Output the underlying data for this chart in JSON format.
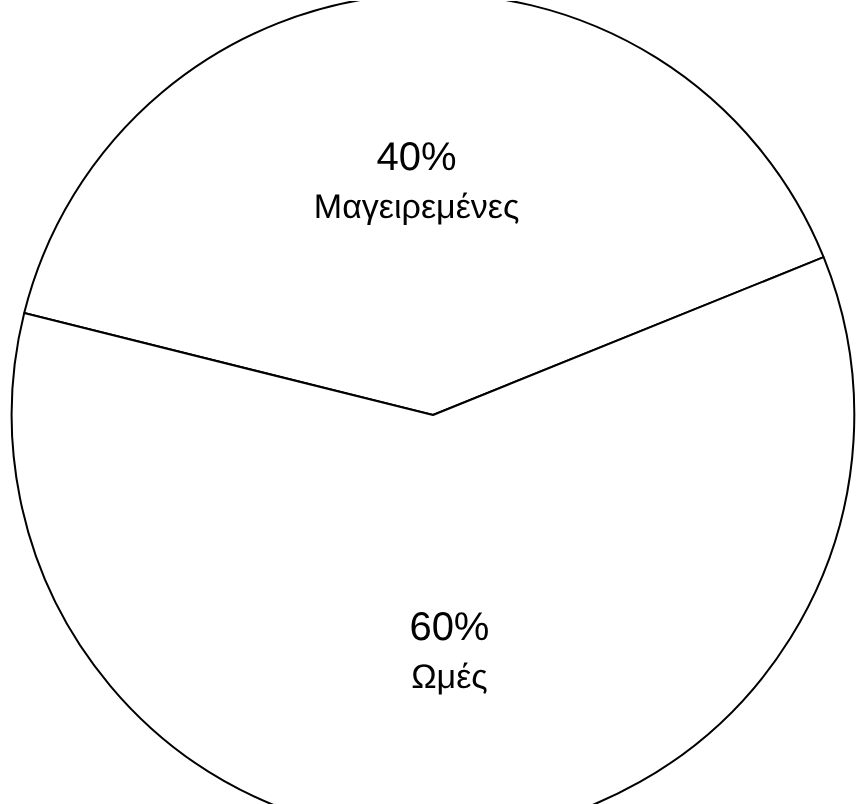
{
  "chart_data": {
    "type": "pie",
    "categories": [
      "Μαγειρεμένες",
      "Ωμές"
    ],
    "values": [
      40,
      60
    ],
    "colors": [
      "#ffffff",
      "#ffffff"
    ],
    "value_labels": [
      "40%",
      "60%"
    ]
  }
}
